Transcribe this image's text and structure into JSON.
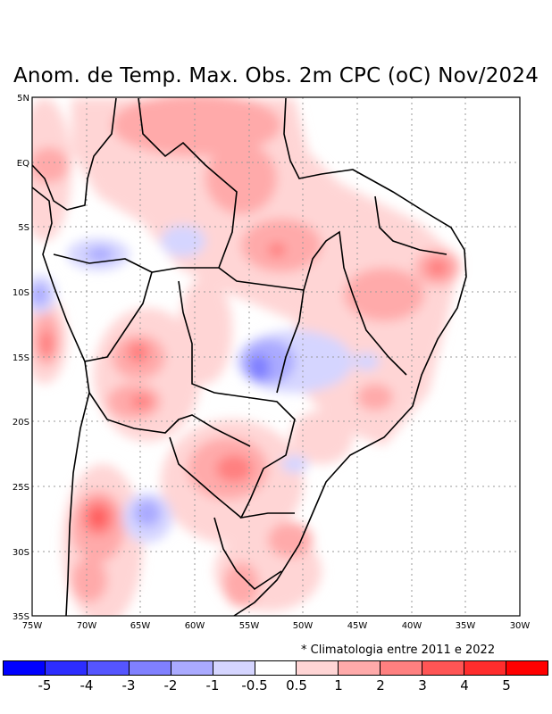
{
  "title": "Anom. de Temp. Max. Obs. 2m CPC (oC) Nov/2024",
  "map": {
    "lon_range": [
      -75,
      -30
    ],
    "lat_range": [
      -35,
      5
    ],
    "lon_ticks": [
      "75W",
      "70W",
      "65W",
      "60W",
      "55W",
      "50W",
      "45W",
      "40W",
      "35W",
      "30W"
    ],
    "lat_ticks": [
      "5N",
      "EQ",
      "5S",
      "10S",
      "15S",
      "20S",
      "25S",
      "30S",
      "35S"
    ]
  },
  "note": "* Climatologia entre 2011 e 2022",
  "colorbar": {
    "colors": [
      "#0000ff",
      "#2d2dff",
      "#5555ff",
      "#8080ff",
      "#aaaaff",
      "#d5d5ff",
      "#ffffff",
      "#ffd5d5",
      "#ffaaaa",
      "#ff8080",
      "#ff5555",
      "#ff2d2d",
      "#ff0000"
    ],
    "labels": [
      "-5",
      "-4",
      "-3",
      "-2",
      "-1",
      "-0.5",
      "0.5",
      "1",
      "2",
      "3",
      "4",
      "5"
    ]
  }
}
